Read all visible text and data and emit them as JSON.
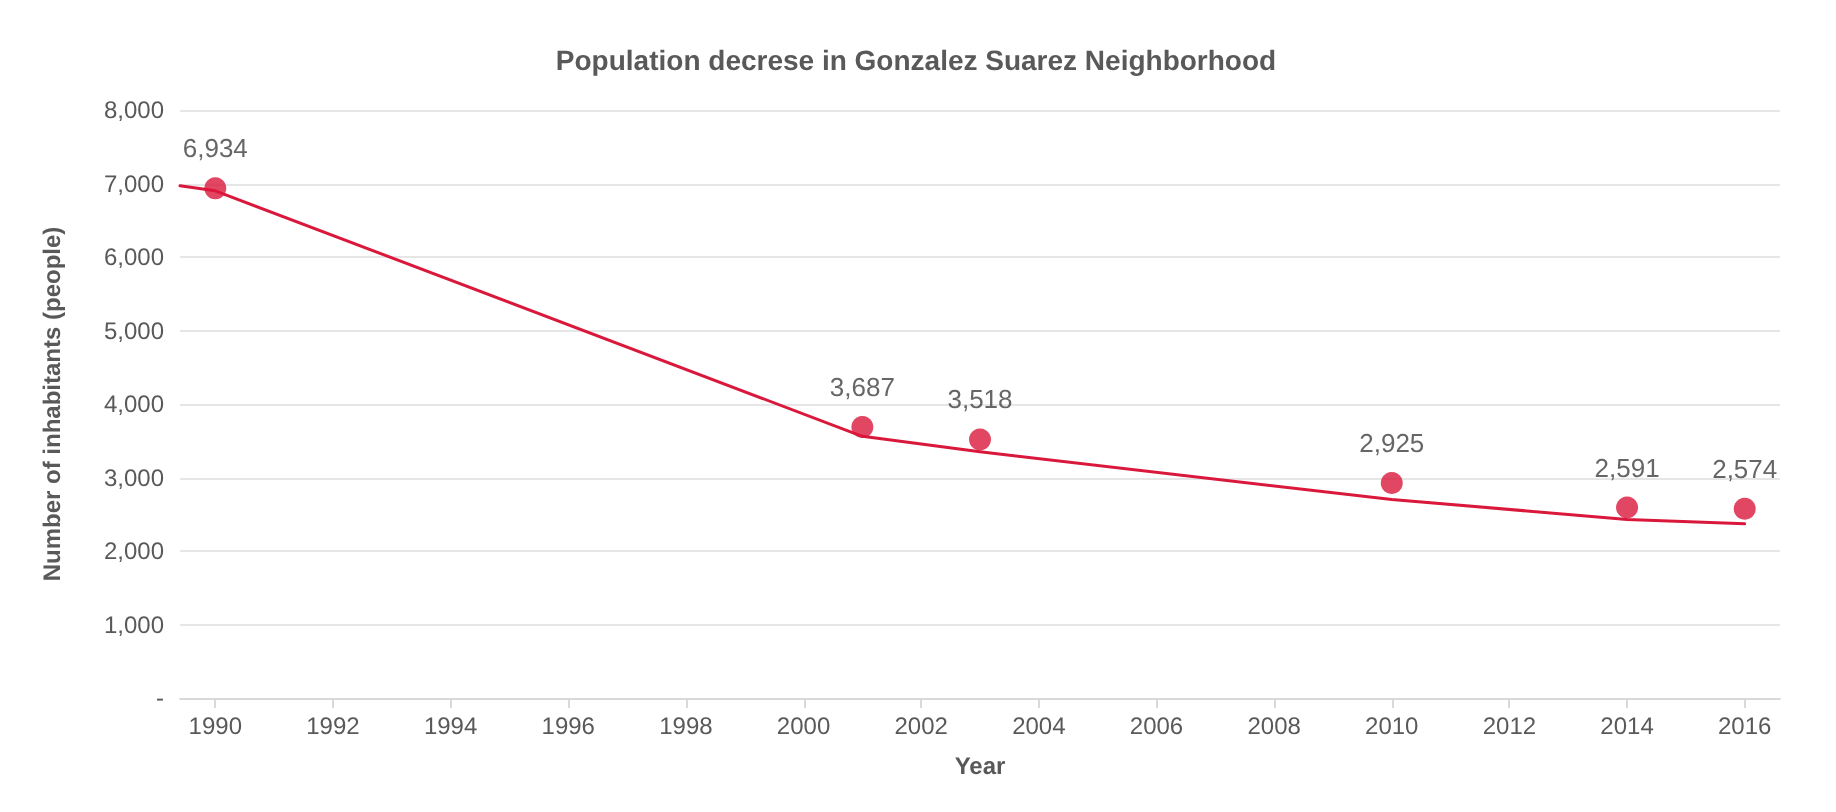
{
  "chart_data": {
    "type": "scatter",
    "title": "Population decrese in Gonzalez Suarez Neighborhood",
    "xlabel": "Year",
    "ylabel": "Number of inhabitants (people)",
    "xlim": [
      1989.4,
      2016.6
    ],
    "xticks": [
      1990,
      1992,
      1994,
      1996,
      1998,
      2000,
      2002,
      2004,
      2006,
      2008,
      2010,
      2012,
      2014,
      2016
    ],
    "ylim": [
      0,
      8000
    ],
    "yticks": [
      {
        "value": 0,
        "label": "-"
      },
      {
        "value": 1000,
        "label": "1,000"
      },
      {
        "value": 2000,
        "label": "2,000"
      },
      {
        "value": 3000,
        "label": "3,000"
      },
      {
        "value": 4000,
        "label": "4,000"
      },
      {
        "value": 5000,
        "label": "5,000"
      },
      {
        "value": 6000,
        "label": "6,000"
      },
      {
        "value": 7000,
        "label": "7,000"
      },
      {
        "value": 8000,
        "label": "8,000"
      }
    ],
    "grid": "y",
    "series": [
      {
        "type": "line",
        "color": "#d9183b",
        "marker": "none",
        "x": [
          1989.4,
          1990,
          2001,
          2003,
          2010,
          2014,
          2016
        ],
        "values": [
          6970,
          6900,
          3560,
          3350,
          2700,
          2430,
          2370
        ]
      },
      {
        "color": "#d9183b",
        "marker": "circle",
        "value_labels": [
          "6,934",
          "3,687",
          "3,518",
          "2,925",
          "2,591",
          "2,574"
        ],
        "x": [
          1990,
          2001,
          2003,
          2010,
          2014,
          2016
        ],
        "values": [
          6934,
          3687,
          3518,
          2925,
          2591,
          2574
        ]
      }
    ]
  }
}
